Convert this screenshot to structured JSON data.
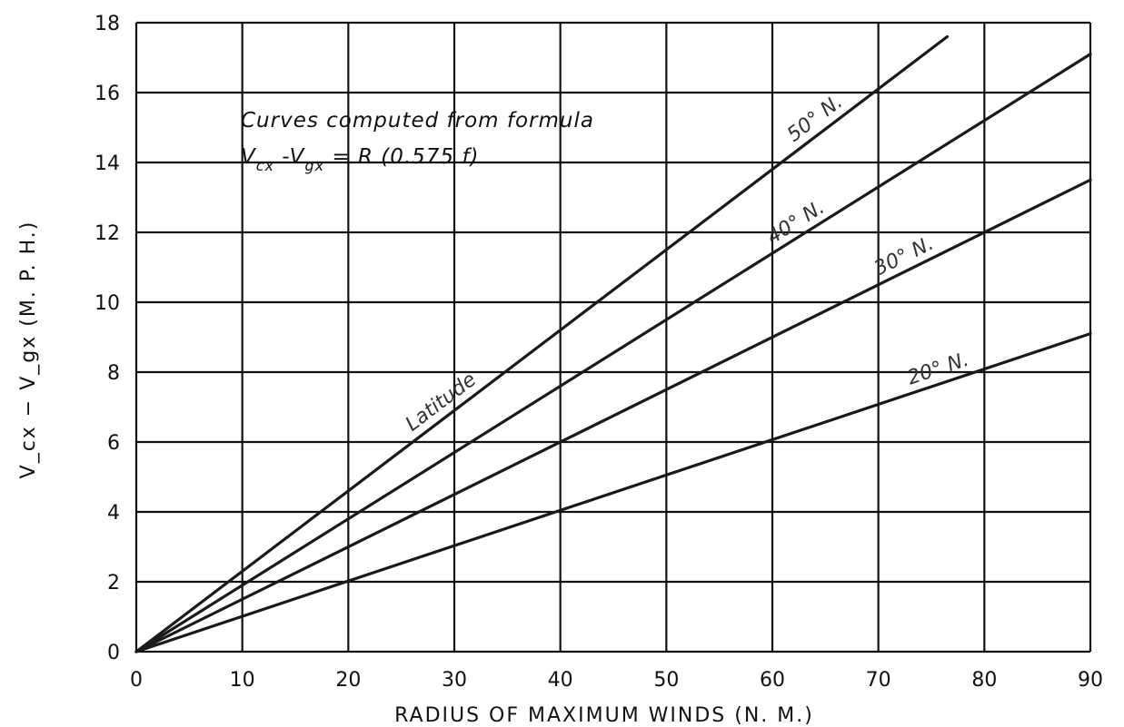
{
  "chart_data": {
    "type": "line",
    "xlabel": "RADIUS OF MAXIMUM WINDS (N. M.)",
    "ylabel": "V_cx − V_gx (M. P. H.)",
    "xlim": [
      0,
      90
    ],
    "ylim": [
      0,
      18
    ],
    "x_ticks": [
      "0",
      "10",
      "20",
      "30",
      "40",
      "50",
      "60",
      "70",
      "80",
      "90"
    ],
    "y_ticks": [
      "0",
      "2",
      "4",
      "6",
      "8",
      "10",
      "12",
      "14",
      "16",
      "18"
    ],
    "grid": true,
    "annotation": {
      "line1": "Curves computed from formula",
      "formula": "V",
      "formula_sub1": "cx",
      "formula_mid": " -V",
      "formula_sub2": "gx",
      "formula_end": " = R (0.575 f)"
    },
    "series_group_label": "Latitude",
    "series": [
      {
        "name": "50° N.",
        "x": [
          0,
          76.5
        ],
        "y": [
          0,
          17.6
        ]
      },
      {
        "name": "40° N.",
        "x": [
          0,
          90
        ],
        "y": [
          0,
          17.1
        ]
      },
      {
        "name": "30° N.",
        "x": [
          0,
          90
        ],
        "y": [
          0,
          13.5
        ]
      },
      {
        "name": "20° N.",
        "x": [
          0,
          90
        ],
        "y": [
          0,
          9.1
        ]
      }
    ]
  }
}
